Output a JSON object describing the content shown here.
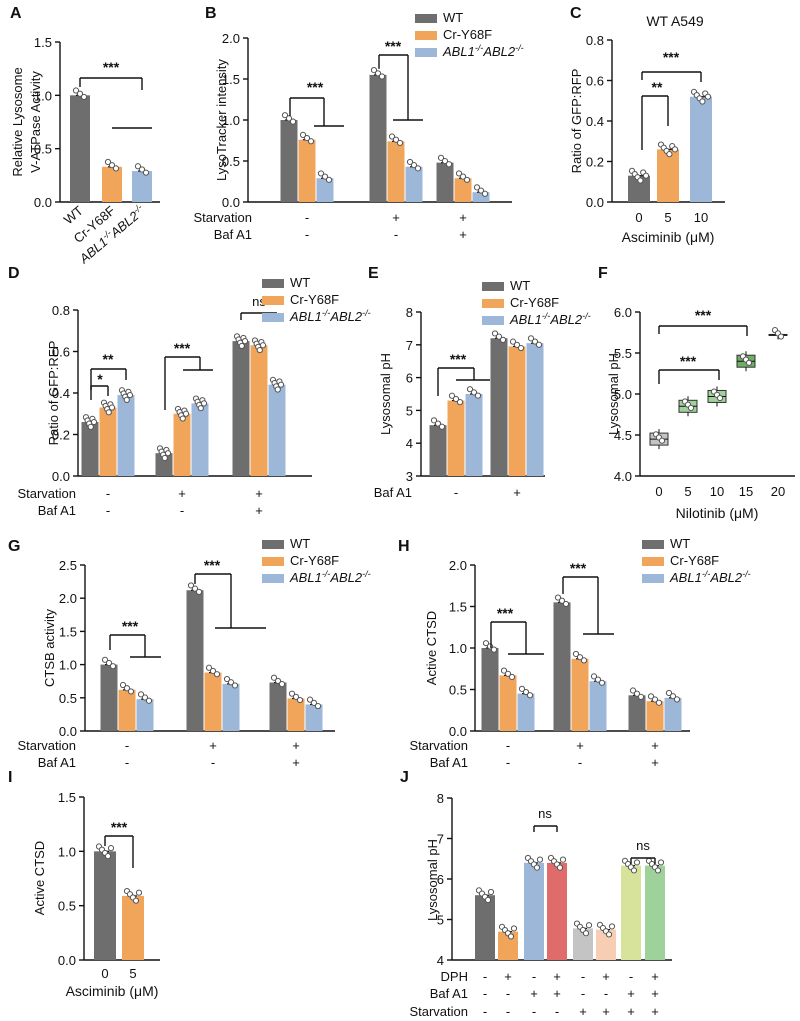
{
  "colors": {
    "wt": "#6e6e6e",
    "cr": "#f0a55a",
    "abl": "#9db7d8",
    "box": "#9fcf8f",
    "box_dark": "#6fae66",
    "light_gray": "#c4c4c4",
    "light_orange": "#f7cdb4",
    "red": "#e06b6b",
    "lime": "#d7e29a",
    "green": "#9fd19a"
  },
  "legend": {
    "wt": "WT",
    "cr": "Cr-Y68F",
    "abl_main": "ABL1",
    "abl_sup1": "-/-",
    "abl_mid": "ABL2",
    "abl_sup2": "-/-"
  },
  "signs": {
    "minus": "-",
    "plus": "+"
  },
  "chart_data": [
    {
      "id": "A",
      "panel_label": "A",
      "type": "bar",
      "ylabel_lines": [
        "Relative Lysosome",
        "V-ATPase Activity"
      ],
      "ylim": [
        0,
        1.5
      ],
      "yticks": [
        "0.0",
        "0.5",
        "1.0",
        "1.5"
      ],
      "categories": [
        "WT",
        "Cr-Y68F",
        "ABL1-/-ABL2-/-"
      ],
      "values": [
        1.0,
        0.33,
        0.29
      ],
      "sig": [
        "***"
      ]
    },
    {
      "id": "B",
      "panel_label": "B",
      "type": "bar",
      "ylabel": "LysoTracker intensity",
      "ylim": [
        0,
        2.0
      ],
      "yticks": [
        "0.0",
        "0.5",
        "1.0",
        "1.5",
        "2.0"
      ],
      "row_labels": [
        "Starvation",
        "Baf A1"
      ],
      "groups": [
        {
          "starvation": "-",
          "bafa1": "-",
          "values": [
            1.0,
            0.76,
            0.29
          ]
        },
        {
          "starvation": "+",
          "bafa1": "-",
          "values": [
            1.55,
            0.74,
            0.43
          ]
        },
        {
          "starvation": "+",
          "bafa1": "+",
          "values": [
            0.48,
            0.29,
            0.12
          ]
        }
      ],
      "sig": [
        "***",
        "***"
      ]
    },
    {
      "id": "C",
      "panel_label": "C",
      "type": "bar",
      "title": "WT A549",
      "ylabel": "Ratio of GFP:RFP",
      "xlabel": "Asciminib (μM)",
      "ylim": [
        0,
        0.8
      ],
      "yticks": [
        "0.0",
        "0.2",
        "0.4",
        "0.6",
        "0.8"
      ],
      "categories": [
        "0",
        "5",
        "10"
      ],
      "values": [
        0.13,
        0.26,
        0.52
      ],
      "sig": [
        "**",
        "***"
      ]
    },
    {
      "id": "D",
      "panel_label": "D",
      "type": "bar",
      "ylabel": "Ratio of GFP:RFP",
      "ylim": [
        0,
        0.8
      ],
      "yticks": [
        "0.0",
        "0.2",
        "0.4",
        "0.6",
        "0.8"
      ],
      "row_labels": [
        "Starvation",
        "Baf A1"
      ],
      "groups": [
        {
          "starvation": "-",
          "bafa1": "-",
          "values": [
            0.26,
            0.33,
            0.39
          ]
        },
        {
          "starvation": "+",
          "bafa1": "-",
          "values": [
            0.11,
            0.3,
            0.35
          ]
        },
        {
          "starvation": "+",
          "bafa1": "+",
          "values": [
            0.65,
            0.63,
            0.44
          ]
        }
      ],
      "sig": [
        "*",
        "**",
        "***",
        "ns"
      ]
    },
    {
      "id": "E",
      "panel_label": "E",
      "type": "bar",
      "ylabel": "Lysosomal pH",
      "ylim": [
        3,
        8
      ],
      "yticks": [
        "3",
        "4",
        "5",
        "6",
        "7",
        "8"
      ],
      "row_labels": [
        "Baf A1"
      ],
      "groups": [
        {
          "bafa1": "-",
          "values": [
            4.55,
            5.3,
            5.5
          ]
        },
        {
          "bafa1": "+",
          "values": [
            7.2,
            6.95,
            7.05
          ]
        }
      ],
      "sig": [
        "***"
      ]
    },
    {
      "id": "F",
      "panel_label": "F",
      "type": "box",
      "ylabel": "Lysosomal pH",
      "xlabel": "Nilotinib (μM)",
      "ylim": [
        4.0,
        6.0
      ],
      "yticks": [
        "4.0",
        "4.5",
        "5.0",
        "5.5",
        "6.0"
      ],
      "categories": [
        "0",
        "5",
        "10",
        "15",
        "20"
      ],
      "values": [
        4.45,
        4.85,
        4.97,
        5.4,
        5.72
      ],
      "sig": [
        "***",
        "***"
      ]
    },
    {
      "id": "G",
      "panel_label": "G",
      "type": "bar",
      "ylabel": "CTSB activity",
      "ylim": [
        0,
        2.5
      ],
      "yticks": [
        "0.0",
        "0.5",
        "1.0",
        "1.5",
        "2.0",
        "2.5"
      ],
      "row_labels": [
        "Starvation",
        "Baf A1"
      ],
      "groups": [
        {
          "starvation": "-",
          "bafa1": "-",
          "values": [
            1.0,
            0.62,
            0.48
          ]
        },
        {
          "starvation": "+",
          "bafa1": "-",
          "values": [
            2.12,
            0.88,
            0.71
          ]
        },
        {
          "starvation": "+",
          "bafa1": "+",
          "values": [
            0.73,
            0.49,
            0.4
          ]
        }
      ],
      "sig": [
        "***",
        "***"
      ]
    },
    {
      "id": "H",
      "panel_label": "H",
      "type": "bar",
      "ylabel": "Active CTSD",
      "ylim": [
        0,
        2.0
      ],
      "yticks": [
        "0.0",
        "0.5",
        "1.0",
        "1.5",
        "2.0"
      ],
      "row_labels": [
        "Starvation",
        "Baf A1"
      ],
      "groups": [
        {
          "starvation": "-",
          "bafa1": "-",
          "values": [
            1.0,
            0.67,
            0.45
          ]
        },
        {
          "starvation": "+",
          "bafa1": "-",
          "values": [
            1.55,
            0.87,
            0.6
          ]
        },
        {
          "starvation": "+",
          "bafa1": "+",
          "values": [
            0.43,
            0.36,
            0.4
          ]
        }
      ],
      "sig": [
        "***",
        "***"
      ]
    },
    {
      "id": "I",
      "panel_label": "I",
      "type": "bar",
      "ylabel": "Active CTSD",
      "xlabel": "Asciminib (μM)",
      "ylim": [
        0,
        1.5
      ],
      "yticks": [
        "0.0",
        "0.5",
        "1.0",
        "1.5"
      ],
      "categories": [
        "0",
        "5"
      ],
      "values": [
        1.0,
        0.59
      ],
      "sig": [
        "***"
      ]
    },
    {
      "id": "J",
      "panel_label": "J",
      "type": "bar",
      "ylabel": "Lysosomal pH",
      "ylim": [
        4,
        8
      ],
      "yticks": [
        "4",
        "5",
        "6",
        "7",
        "8"
      ],
      "row_labels": [
        "DPH",
        "Baf A1",
        "Starvation"
      ],
      "bars": [
        {
          "value": 5.6,
          "dph": "-",
          "bafa1": "-",
          "starvation": "-"
        },
        {
          "value": 4.7,
          "dph": "+",
          "bafa1": "-",
          "starvation": "-"
        },
        {
          "value": 6.4,
          "dph": "-",
          "bafa1": "+",
          "starvation": "-"
        },
        {
          "value": 6.4,
          "dph": "+",
          "bafa1": "+",
          "starvation": "-"
        },
        {
          "value": 4.78,
          "dph": "-",
          "bafa1": "-",
          "starvation": "+"
        },
        {
          "value": 4.75,
          "dph": "+",
          "bafa1": "-",
          "starvation": "+"
        },
        {
          "value": 6.33,
          "dph": "-",
          "bafa1": "+",
          "starvation": "+"
        },
        {
          "value": 6.33,
          "dph": "+",
          "bafa1": "+",
          "starvation": "+"
        }
      ],
      "sig": [
        "ns",
        "ns"
      ]
    }
  ]
}
